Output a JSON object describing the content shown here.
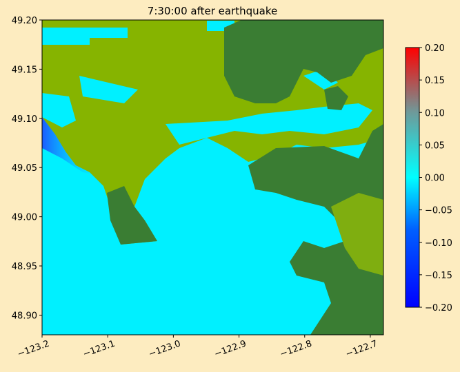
{
  "chart_data": {
    "type": "map",
    "title": "7:30:00 after earthquake",
    "xlim": [
      -123.2,
      -122.68
    ],
    "ylim": [
      48.88,
      49.2
    ],
    "xticks": [
      {
        "value": -123.2,
        "label": "−123.2"
      },
      {
        "value": -123.1,
        "label": "−123.1"
      },
      {
        "value": -123.0,
        "label": "−123.0"
      },
      {
        "value": -122.9,
        "label": "−122.9"
      },
      {
        "value": -122.8,
        "label": "−122.8"
      },
      {
        "value": -122.7,
        "label": "−122.7"
      }
    ],
    "yticks": [
      {
        "value": 48.9,
        "label": "48.90"
      },
      {
        "value": 48.95,
        "label": "48.95"
      },
      {
        "value": 49.0,
        "label": "49.00"
      },
      {
        "value": 49.05,
        "label": "49.05"
      },
      {
        "value": 49.1,
        "label": "49.10"
      },
      {
        "value": 49.15,
        "label": "49.15"
      },
      {
        "value": 49.2,
        "label": "49.20"
      }
    ],
    "colorbar": {
      "clim": [
        -0.2,
        0.2
      ],
      "ticks": [
        {
          "value": -0.2,
          "label": "−0.20"
        },
        {
          "value": -0.15,
          "label": "−0.15"
        },
        {
          "value": -0.1,
          "label": "−0.10"
        },
        {
          "value": -0.05,
          "label": "−0.05"
        },
        {
          "value": 0,
          "label": "0.00"
        },
        {
          "value": 0.05,
          "label": "0.05"
        },
        {
          "value": 0.1,
          "label": "0.10"
        },
        {
          "value": 0.15,
          "label": "0.15"
        },
        {
          "value": 0.2,
          "label": "0.20"
        }
      ]
    }
  }
}
